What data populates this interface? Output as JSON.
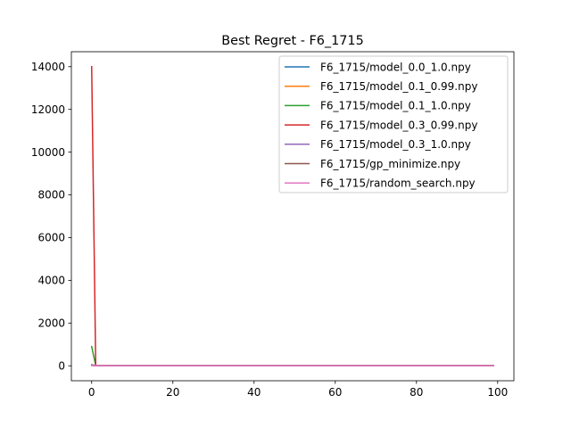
{
  "chart_data": {
    "type": "line",
    "title": "Best Regret - F6_1715",
    "xlabel": "",
    "ylabel": "",
    "xlim": [
      -5,
      104
    ],
    "ylim": [
      -700,
      14700
    ],
    "xticks": [
      0,
      20,
      40,
      60,
      80,
      100
    ],
    "yticks": [
      0,
      2000,
      4000,
      6000,
      8000,
      10000,
      12000,
      14000
    ],
    "grid": false,
    "legend_position": "top-right",
    "series": [
      {
        "name": "F6_1715/model_0.0_1.0.npy",
        "color": "#1f77b4",
        "x": [
          0,
          1,
          99
        ],
        "y": [
          50,
          5,
          5
        ]
      },
      {
        "name": "F6_1715/model_0.1_0.99.npy",
        "color": "#ff7f0e",
        "x": [
          0,
          1,
          99
        ],
        "y": [
          30,
          5,
          5
        ]
      },
      {
        "name": "F6_1715/model_0.1_1.0.npy",
        "color": "#2ca02c",
        "x": [
          0,
          1,
          99
        ],
        "y": [
          900,
          5,
          5
        ]
      },
      {
        "name": "F6_1715/model_0.3_0.99.npy",
        "color": "#d62728",
        "x": [
          0,
          1,
          99
        ],
        "y": [
          14000,
          5,
          5
        ]
      },
      {
        "name": "F6_1715/model_0.3_1.0.npy",
        "color": "#9467bd",
        "x": [
          0,
          1,
          99
        ],
        "y": [
          40,
          5,
          5
        ]
      },
      {
        "name": "F6_1715/gp_minimize.npy",
        "color": "#8c564b",
        "x": [
          0,
          1,
          99
        ],
        "y": [
          20,
          5,
          5
        ]
      },
      {
        "name": "F6_1715/random_search.npy",
        "color": "#e377c2",
        "x": [
          0,
          1,
          99
        ],
        "y": [
          10,
          5,
          5
        ]
      }
    ]
  }
}
